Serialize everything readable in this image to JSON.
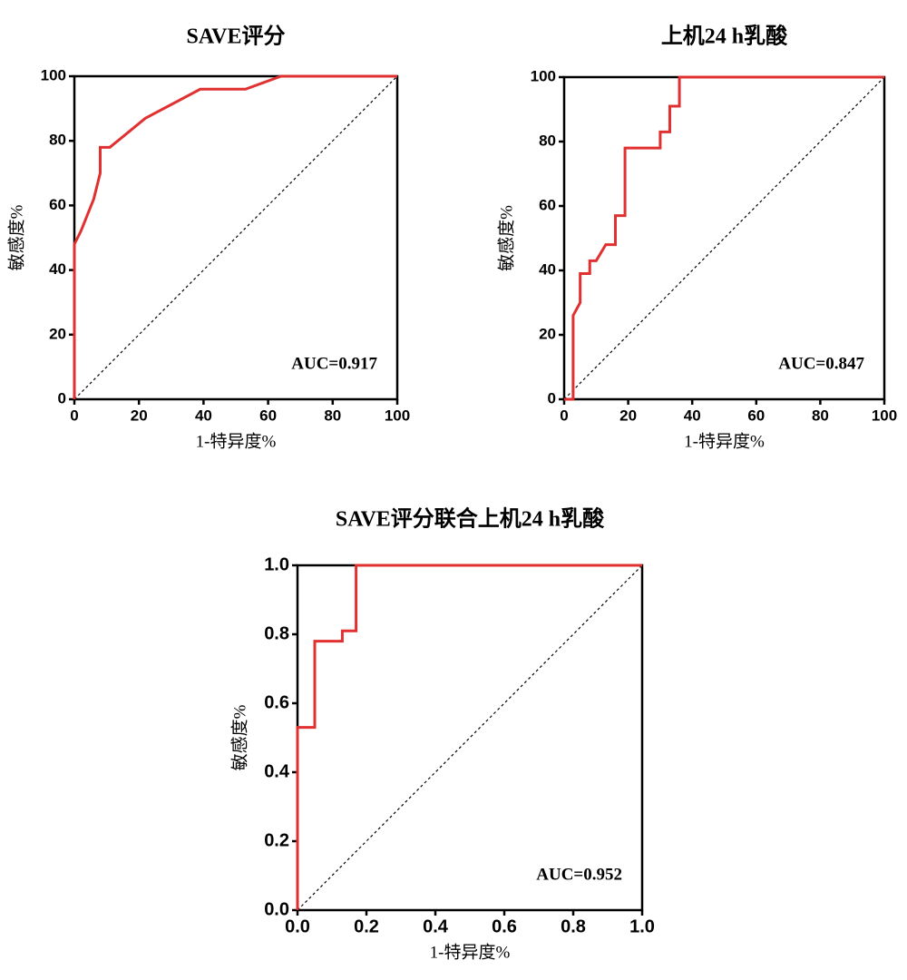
{
  "chart_data": [
    {
      "type": "line",
      "title": "SAVE评分",
      "x_label": "1-特异度%",
      "y_label": "敏感度%",
      "annotation": "AUC=0.917",
      "xlim": [
        0,
        100
      ],
      "ylim": [
        0,
        100
      ],
      "xticks": [
        0,
        20,
        40,
        60,
        80,
        100
      ],
      "yticks": [
        0,
        20,
        40,
        60,
        80,
        100
      ],
      "series": [
        {
          "color": "#e03030",
          "x": [
            0,
            0,
            2,
            6,
            8,
            8,
            11,
            22,
            39,
            53,
            64,
            100
          ],
          "values": [
            0,
            48,
            52,
            62,
            70,
            78,
            78,
            87,
            96,
            96,
            100,
            100
          ]
        }
      ]
    },
    {
      "type": "line",
      "title": "上机24 h乳酸",
      "x_label": "1-特异度%",
      "y_label": "敏感度%",
      "annotation": "AUC=0.847",
      "xlim": [
        0,
        100
      ],
      "ylim": [
        0,
        100
      ],
      "xticks": [
        0,
        20,
        40,
        60,
        80,
        100
      ],
      "yticks": [
        0,
        20,
        40,
        60,
        80,
        100
      ],
      "series": [
        {
          "color": "#e03030",
          "x": [
            0,
            2.8,
            2.8,
            5,
            5,
            8,
            8,
            10,
            13,
            16,
            16,
            19,
            19,
            30,
            30,
            33,
            33,
            36,
            36,
            100
          ],
          "values": [
            0,
            0,
            26,
            30,
            39,
            39,
            43,
            43,
            48,
            48,
            57,
            57,
            78,
            78,
            83,
            83,
            91,
            91,
            100,
            100
          ]
        }
      ]
    },
    {
      "type": "line",
      "title": "SAVE评分联合上机24 h乳酸",
      "x_label": "1-特异度%",
      "y_label": "敏感度%",
      "annotation": "AUC=0.952",
      "xlim": [
        0,
        1
      ],
      "ylim": [
        0,
        1
      ],
      "xticks": [
        {
          "value": 0,
          "label": "0.0"
        },
        0.2,
        0.4,
        0.6,
        0.8,
        {
          "value": 1,
          "label": "1.0"
        }
      ],
      "yticks": [
        {
          "value": 0,
          "label": "0.0"
        },
        0.2,
        0.4,
        0.6,
        0.8,
        {
          "value": 1,
          "label": "1.0"
        }
      ],
      "series": [
        {
          "color": "#e03030",
          "x": [
            0,
            0,
            0.05,
            0.05,
            0.13,
            0.13,
            0.17,
            0.17,
            1
          ],
          "values": [
            0,
            0.53,
            0.53,
            0.78,
            0.78,
            0.81,
            0.81,
            1,
            1
          ]
        }
      ]
    }
  ]
}
